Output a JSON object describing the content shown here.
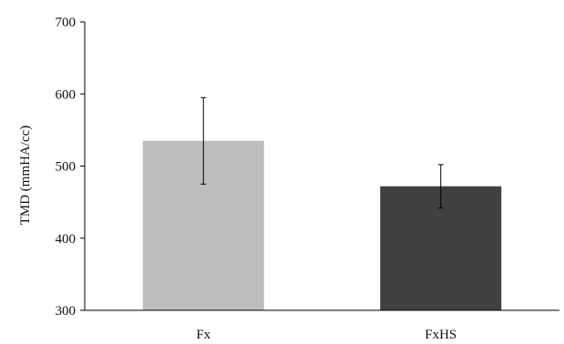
{
  "chart_data": {
    "type": "bar",
    "categories": [
      "Fx",
      "FxHS"
    ],
    "values": [
      535,
      472
    ],
    "error": [
      60,
      30
    ],
    "ylabel": "TMD (mmHA/cc)",
    "ylim": [
      300,
      700
    ],
    "yticks": [
      300,
      400,
      500,
      600,
      700
    ],
    "bar_colors": [
      "#bdbdbd",
      "#404040"
    ],
    "grid": false,
    "legend": "none"
  }
}
